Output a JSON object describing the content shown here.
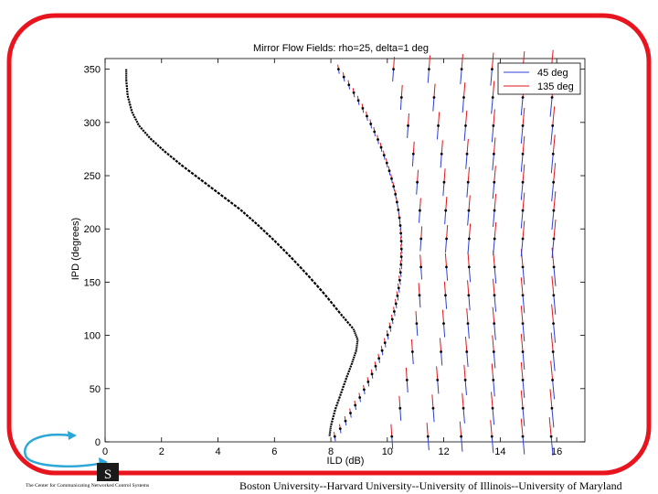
{
  "colors": {
    "frame": "#e8141e",
    "series_45": "#2b3fd6",
    "series_135": "#e0161b",
    "curve": "#000000",
    "logo_arrow": "#2aa6d8"
  },
  "footer": {
    "institutions": "Boston University--Harvard University--University of Illinois--University of Maryland",
    "logo_caption": "The Center for Communicating Networked Control Systems",
    "logo_letter": "S"
  },
  "chart_data": {
    "type": "quiver",
    "title": "Mirror Flow Fields: rho=25, delta=1 deg",
    "xlabel": "ILD (dB)",
    "ylabel": "IPD (degrees)",
    "xlim": [
      0,
      17
    ],
    "ylim": [
      0,
      360
    ],
    "xticks": [
      0,
      2,
      4,
      6,
      8,
      10,
      12,
      14,
      16
    ],
    "yticks": [
      0,
      50,
      100,
      150,
      200,
      250,
      300,
      350
    ],
    "legend": {
      "position": "top-right",
      "entries": [
        "45 deg",
        "135 deg"
      ]
    },
    "grid": false,
    "series": [
      {
        "name": "45 deg",
        "color": "#2b3fd6"
      },
      {
        "name": "135 deg",
        "color": "#e0161b"
      }
    ],
    "curve_points": [
      [
        0.75,
        350
      ],
      [
        0.75,
        340
      ],
      [
        0.8,
        325
      ],
      [
        0.95,
        310
      ],
      [
        1.2,
        297
      ],
      [
        1.6,
        285
      ],
      [
        2.1,
        273
      ],
      [
        2.7,
        260
      ],
      [
        3.4,
        246
      ],
      [
        4.1,
        232
      ],
      [
        4.8,
        218
      ],
      [
        5.4,
        204
      ],
      [
        6.0,
        189
      ],
      [
        6.6,
        173
      ],
      [
        7.2,
        156
      ],
      [
        7.8,
        138
      ],
      [
        8.35,
        120
      ],
      [
        8.8,
        106
      ],
      [
        8.95,
        96
      ],
      [
        8.9,
        86
      ],
      [
        8.75,
        74
      ],
      [
        8.55,
        60
      ],
      [
        8.35,
        45
      ],
      [
        8.15,
        30
      ],
      [
        8.0,
        15
      ],
      [
        7.95,
        5
      ]
    ],
    "field_columns": [
      {
        "x_at_top": 8.0,
        "x_at_mid": 10.5,
        "x_at_bottom": 8.0
      },
      {
        "x_at_top": 10.1,
        "x_at_mid": 11.2,
        "x_at_bottom": 10.1
      },
      {
        "x_at_top": 11.4,
        "x_at_mid": 12.1,
        "x_at_bottom": 11.4
      },
      {
        "x_at_top": 12.6,
        "x_at_mid": 12.9,
        "x_at_bottom": 12.6
      },
      {
        "x_at_top": 13.7,
        "x_at_mid": 13.8,
        "x_at_bottom": 13.7
      },
      {
        "x_at_top": 14.8,
        "x_at_mid": 14.8,
        "x_at_bottom": 14.8
      },
      {
        "x_at_top": 15.8,
        "x_at_mid": 15.9,
        "x_at_bottom": 15.8
      }
    ]
  }
}
